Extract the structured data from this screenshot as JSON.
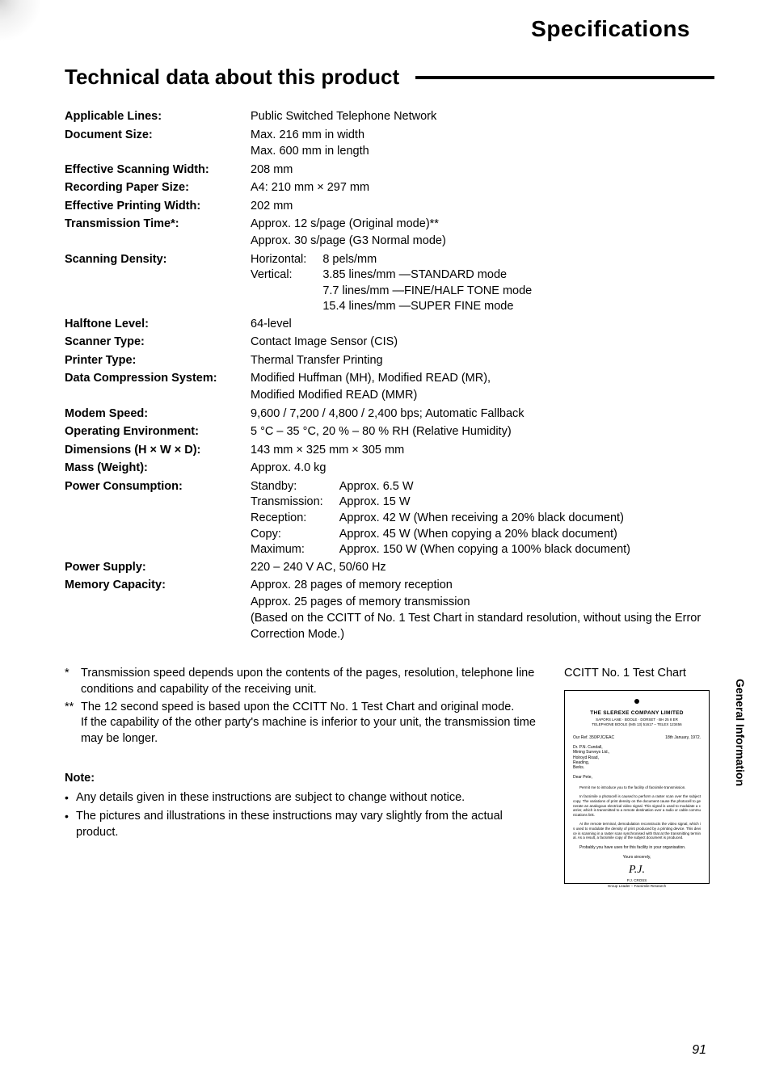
{
  "page": {
    "header": "Specifications",
    "section_title": "Technical data about this product",
    "page_number": "91",
    "side_tab": "General Information"
  },
  "specs": [
    {
      "label": "Applicable Lines:",
      "lines": [
        "Public Switched Telephone Network"
      ]
    },
    {
      "label": "Document Size:",
      "lines": [
        "Max. 216 mm in width",
        "Max. 600 mm in length"
      ]
    },
    {
      "label": "Effective Scanning Width:",
      "lines": [
        "208 mm"
      ]
    },
    {
      "label": "Recording Paper Size:",
      "lines": [
        "A4:  210 mm × 297 mm"
      ]
    },
    {
      "label": "Effective Printing Width:",
      "lines": [
        "202 mm"
      ]
    },
    {
      "label": "Transmission Time*:",
      "lines": [
        "Approx. 12 s/page (Original mode)**",
        "Approx. 30 s/page (G3 Normal mode)"
      ]
    },
    {
      "label": "Scanning Density:",
      "sub": [
        {
          "k": "Horizontal:",
          "v": "8 pels/mm"
        },
        {
          "k": "Vertical:",
          "v": "3.85 lines/mm —STANDARD mode\n7.7 lines/mm —FINE/HALF TONE mode\n15.4 lines/mm —SUPER FINE mode"
        }
      ]
    },
    {
      "label": "Halftone Level:",
      "lines": [
        "64-level"
      ]
    },
    {
      "label": "Scanner Type:",
      "lines": [
        "Contact Image Sensor (CIS)"
      ]
    },
    {
      "label": "Printer Type:",
      "lines": [
        "Thermal Transfer Printing"
      ]
    },
    {
      "label": "Data Compression System:",
      "lines": [
        "Modified Huffman (MH), Modified READ (MR),",
        "Modified Modified READ (MMR)"
      ]
    },
    {
      "label": "Modem Speed:",
      "lines": [
        "9,600 / 7,200 / 4,800 / 2,400 bps; Automatic Fallback"
      ]
    },
    {
      "label": "Operating Environment:",
      "lines": [
        "5 °C – 35 °C, 20 % – 80 % RH (Relative Humidity)"
      ]
    },
    {
      "label": "Dimensions (H × W × D):",
      "lines": [
        "143 mm × 325 mm × 305 mm"
      ]
    },
    {
      "label": "Mass (Weight):",
      "lines": [
        "Approx. 4.0 kg"
      ]
    },
    {
      "label": "Power Consumption:",
      "sub": [
        {
          "k": "Standby:",
          "v": "Approx. 6.5 W"
        },
        {
          "k": "Transmission:",
          "v": "Approx. 15 W"
        },
        {
          "k": "Reception:",
          "v": "Approx. 42 W (When receiving a 20% black document)"
        },
        {
          "k": "Copy:",
          "v": "Approx. 45 W (When copying a 20% black document)"
        },
        {
          "k": "Maximum:",
          "v": "Approx. 150 W (When copying a 100% black document)"
        }
      ]
    },
    {
      "label": "Power Supply:",
      "lines": [
        "220 – 240 V AC, 50/60 Hz"
      ]
    },
    {
      "label": "Memory Capacity:",
      "lines": [
        "Approx. 28 pages of memory reception",
        "Approx. 25 pages of memory transmission",
        "(Based on the CCITT of No. 1 Test Chart in standard resolution, without using the Error Correction Mode.)"
      ]
    }
  ],
  "footnotes": [
    {
      "mark": "*",
      "text": "Transmission speed depends upon the contents of the pages, resolution, telephone line conditions and capability of the receiving unit."
    },
    {
      "mark": "**",
      "text": "The 12 second speed is based upon the CCITT No. 1 Test Chart and original mode.\nIf the capability of the other party's machine is inferior to your unit, the transmission time may be longer."
    }
  ],
  "note": {
    "title": "Note:",
    "items": [
      "Any details given in these instructions are subject to change without notice.",
      "The pictures and illustrations in these instructions may vary slightly from the actual product."
    ]
  },
  "test_chart": {
    "caption": "CCITT No. 1 Test Chart",
    "company": "THE SLEREXE COMPANY LIMITED",
    "sub1": "SAPORS LANE · BOOLE · DORSET · BH 25 8 ER",
    "sub2": "TELEPHONE BOOLE (945 13) 51617 – TELEX 123456",
    "ref_left": "Our Ref. 350/PJC/EAC",
    "ref_right": "18th January, 1972.",
    "addr": "Dr. P.N. Cundall,\nMining Surveys Ltd.,\nHolroyd Road,\nReading,\nBerks.",
    "salutation": "Dear Pete,",
    "para1": "Permit me to introduce you to the facility of facsimile transmission.",
    "para2": "In facsimile a photocell is caused to perform a raster scan over the subject copy. The variations of print density on the document cause the photocell to generate an analogous electrical video signal. This signal is used to modulate a carrier, which is transmitted to a remote destination over a radio or cable communications link.",
    "para3": "At the remote terminal, demodulation reconstructs the video signal, which is used to modulate the density of print produced by a printing device. This device is scanning in a raster scan synchronised with that at the transmitting terminal. As a result, a facsimile copy of the subject document is produced.",
    "closing": "Probably you have uses for this facility in your organisation.",
    "yours": "Yours sincerely,",
    "sig": "P.J.",
    "name": "P.J. CROSS",
    "role": "Group Leader – Facsimile Research"
  },
  "style": {
    "text_color": "#000000",
    "bg_color": "#ffffff",
    "header_fontsize": 28,
    "title_fontsize": 26,
    "body_fontsize": 14.5,
    "font_family": "Arial, Helvetica, sans-serif"
  }
}
